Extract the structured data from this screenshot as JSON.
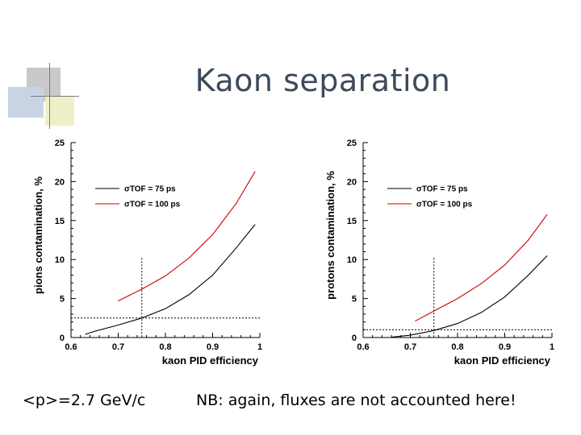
{
  "slide": {
    "title": "Kaon separation",
    "footer_left": "<p>=2.7 GeV/c",
    "footer_right": "NB: again, fluxes are not accounted here!"
  },
  "chart_data": [
    {
      "type": "line",
      "ylabel": "pions contamination, %",
      "xlabel": "kaon PID efficiency",
      "xlim": [
        0.6,
        1.0
      ],
      "ylim": [
        0,
        25
      ],
      "xticks": [
        "0.6",
        "0.7",
        "0.8",
        "0.9",
        "1"
      ],
      "yticks": [
        "0",
        "5",
        "10",
        "15",
        "20",
        "25"
      ],
      "legend": [
        "σTOF = 75 ps",
        "σTOF = 100 ps"
      ],
      "series": [
        {
          "name": "σTOF = 75 ps",
          "color": "#000000",
          "x": [
            0.63,
            0.65,
            0.7,
            0.75,
            0.8,
            0.85,
            0.9,
            0.95,
            0.99
          ],
          "y": [
            0.4,
            0.8,
            1.6,
            2.5,
            3.7,
            5.5,
            8.0,
            11.5,
            14.5
          ]
        },
        {
          "name": "σTOF = 100 ps",
          "color": "#cc0000",
          "x": [
            0.7,
            0.75,
            0.8,
            0.85,
            0.9,
            0.95,
            0.99
          ],
          "y": [
            4.7,
            6.2,
            7.9,
            10.2,
            13.2,
            17.2,
            21.3
          ]
        }
      ],
      "ref_x": 0.75,
      "ref_y": 2.5
    },
    {
      "type": "line",
      "ylabel": "protons contamination, %",
      "xlabel": "kaon PID efficiency",
      "xlim": [
        0.6,
        1.0
      ],
      "ylim": [
        0,
        25
      ],
      "xticks": [
        "0.6",
        "0.7",
        "0.8",
        "0.9",
        "1"
      ],
      "yticks": [
        "0",
        "5",
        "10",
        "15",
        "20",
        "25"
      ],
      "legend": [
        "σTOF = 75 ps",
        "σTOF = 100 ps"
      ],
      "series": [
        {
          "name": "σTOF = 75 ps",
          "color": "#000000",
          "x": [
            0.66,
            0.7,
            0.75,
            0.8,
            0.85,
            0.9,
            0.95,
            0.99
          ],
          "y": [
            0.05,
            0.3,
            0.9,
            1.8,
            3.2,
            5.2,
            8.0,
            10.5
          ]
        },
        {
          "name": "σTOF = 100 ps",
          "color": "#cc0000",
          "x": [
            0.71,
            0.75,
            0.8,
            0.85,
            0.9,
            0.95,
            0.99
          ],
          "y": [
            2.1,
            3.4,
            5.0,
            6.9,
            9.3,
            12.5,
            15.8
          ]
        }
      ],
      "ref_x": 0.75,
      "ref_y": 1.0
    }
  ]
}
